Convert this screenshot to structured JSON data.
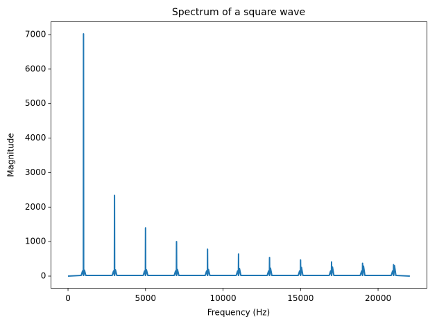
{
  "chart_data": {
    "type": "line",
    "title": "Spectrum of a square wave",
    "xlabel": "Frequency (Hz)",
    "ylabel": "Magnitude",
    "x": [
      0,
      850,
      940,
      990,
      1000,
      1010,
      1060,
      1150,
      2850,
      2940,
      2990,
      3000,
      3010,
      3060,
      3150,
      4850,
      4940,
      4990,
      5000,
      5010,
      5060,
      5150,
      6850,
      6940,
      6990,
      7000,
      7010,
      7060,
      7150,
      8850,
      8940,
      8990,
      9000,
      9010,
      9060,
      9150,
      10850,
      10940,
      10990,
      11000,
      11010,
      11060,
      11150,
      12850,
      12940,
      12990,
      13000,
      13010,
      13060,
      13150,
      14850,
      14940,
      14990,
      15000,
      15010,
      15060,
      15150,
      16850,
      16940,
      16990,
      17000,
      17010,
      17060,
      17150,
      18850,
      18940,
      18990,
      19000,
      19010,
      19060,
      19150,
      20850,
      20940,
      20990,
      21000,
      21010,
      21060,
      21150,
      22050
    ],
    "values": [
      0,
      20,
      150,
      20,
      7020,
      20,
      170,
      20,
      20,
      150,
      20,
      2340,
      20,
      180,
      20,
      20,
      150,
      20,
      1400,
      20,
      180,
      20,
      20,
      150,
      20,
      1000,
      20,
      190,
      20,
      20,
      150,
      20,
      780,
      20,
      190,
      20,
      20,
      150,
      20,
      640,
      20,
      220,
      20,
      20,
      150,
      20,
      540,
      20,
      230,
      20,
      20,
      150,
      20,
      470,
      20,
      250,
      20,
      20,
      150,
      20,
      410,
      20,
      260,
      20,
      20,
      150,
      20,
      370,
      20,
      290,
      20,
      20,
      150,
      20,
      330,
      20,
      300,
      20,
      0
    ],
    "color": "#1f77b4",
    "xlim": [
      -1102.5,
      23152.5
    ],
    "xticks": [
      0,
      5000,
      10000,
      15000,
      20000
    ],
    "ylim": [
      -351,
      7371
    ],
    "yticks": [
      0,
      1000,
      2000,
      3000,
      4000,
      5000,
      6000,
      7000
    ]
  }
}
